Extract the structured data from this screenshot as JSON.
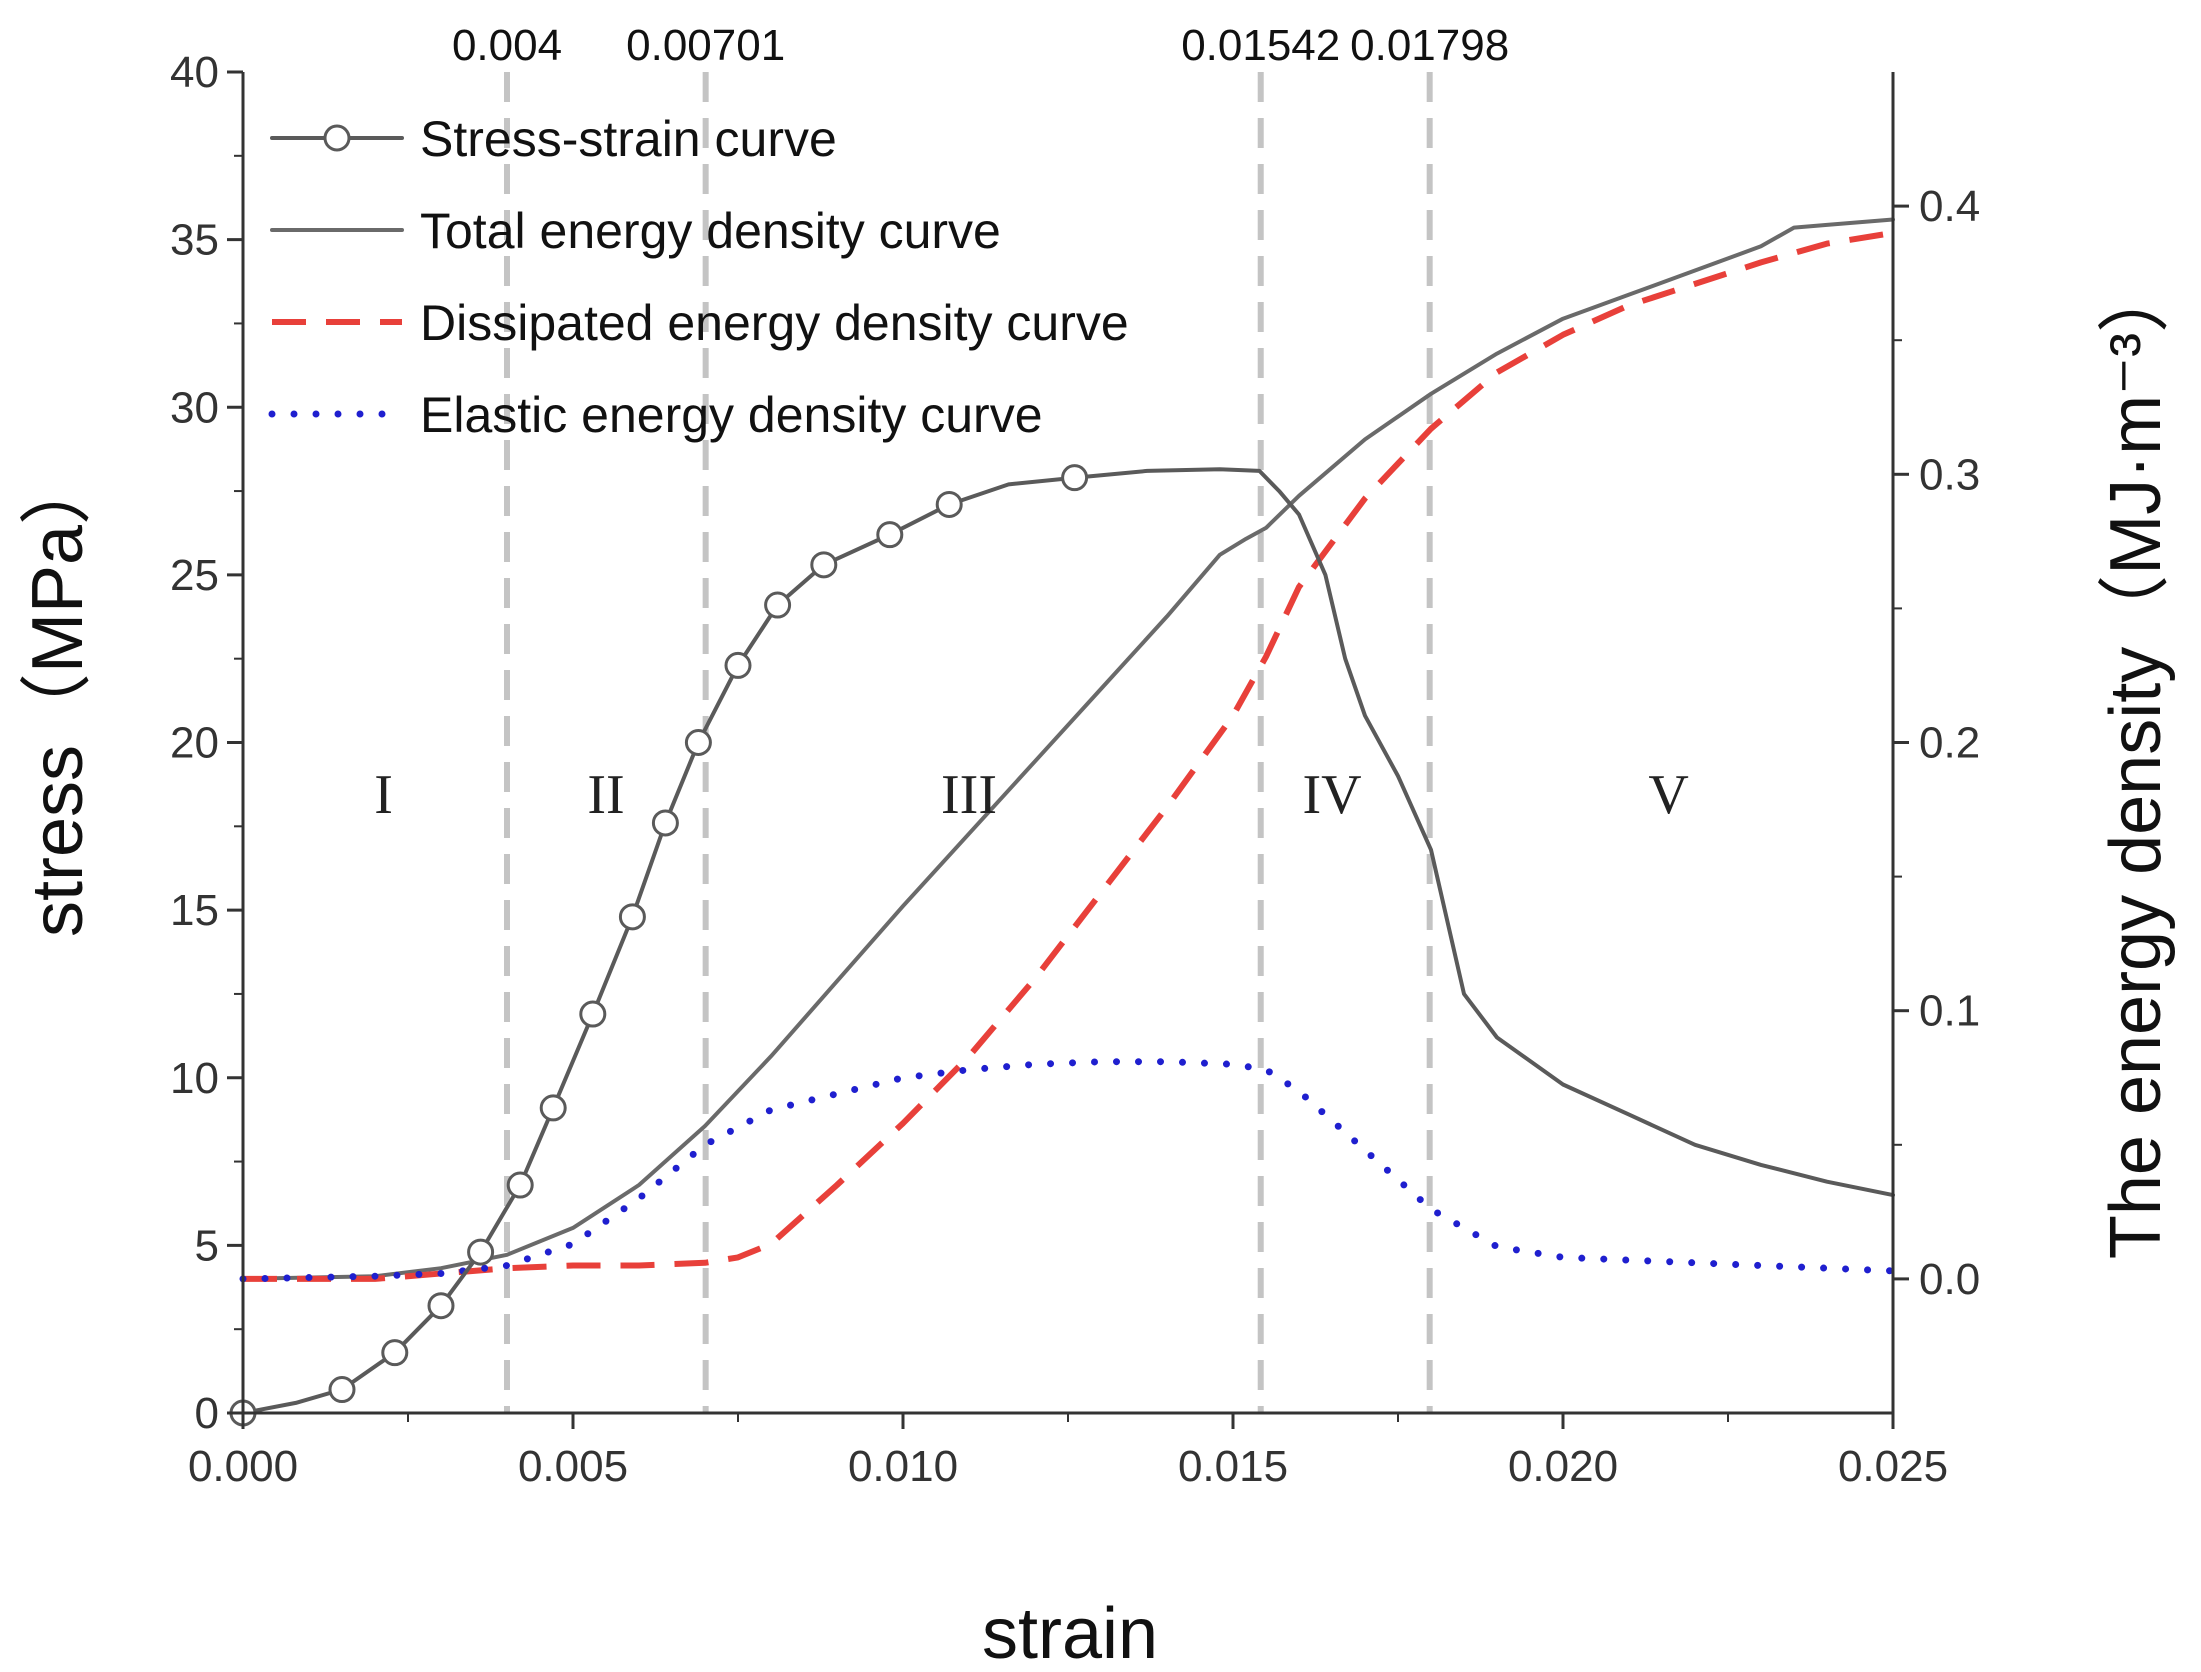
{
  "chart_data": {
    "type": "line",
    "xlabel": "strain",
    "ylabel_left": "stress（MPa）",
    "ylabel_right": "The energy density（MJ·m⁻³）",
    "xlim": [
      0,
      0.025
    ],
    "ylim_left": [
      0,
      40
    ],
    "ylim_right": [
      -0.05,
      0.45
    ],
    "x_ticks": [
      "0.000",
      "0.005",
      "0.010",
      "0.015",
      "0.020",
      "0.025"
    ],
    "y_left_ticks": [
      "0",
      "5",
      "10",
      "15",
      "20",
      "25",
      "30",
      "35",
      "40"
    ],
    "y_right_ticks": [
      "0.0",
      "0.1",
      "0.2",
      "0.3",
      "0.4"
    ],
    "boundaries": [
      {
        "x": 0.004,
        "label": "0.004"
      },
      {
        "x": 0.00701,
        "label": "0.00701"
      },
      {
        "x": 0.01542,
        "label": "0.01542"
      },
      {
        "x": 0.01798,
        "label": "0.01798"
      }
    ],
    "regions": [
      {
        "label": "I",
        "x": 0.00213,
        "y": 18.5
      },
      {
        "label": "II",
        "x": 0.0055,
        "y": 18.5
      },
      {
        "label": "III",
        "x": 0.011,
        "y": 18.5
      },
      {
        "label": "IV",
        "x": 0.0165,
        "y": 18.5
      },
      {
        "label": "V",
        "x": 0.0216,
        "y": 18.5
      }
    ],
    "series": [
      {
        "name": "Stress-strain curve",
        "axis": "left",
        "color": "#5a5a5a",
        "style": "line-circle",
        "x": [
          0,
          0.0008,
          0.0015,
          0.0023,
          0.003,
          0.0036,
          0.0042,
          0.0047,
          0.0053,
          0.0059,
          0.0064,
          0.0069,
          0.0075,
          0.0081,
          0.0088,
          0.0098,
          0.0107,
          0.0116,
          0.0126,
          0.0137,
          0.0148,
          0.0154,
          0.0157,
          0.016,
          0.0164,
          0.0167,
          0.017,
          0.0175,
          0.018,
          0.0185,
          0.019,
          0.02,
          0.021,
          0.022,
          0.023,
          0.024,
          0.025
        ],
        "y": [
          0,
          0.3,
          0.7,
          1.8,
          3.2,
          4.8,
          6.8,
          9.1,
          11.9,
          14.8,
          17.6,
          20.0,
          22.3,
          24.1,
          25.3,
          26.2,
          27.1,
          27.7,
          27.9,
          28.1,
          28.15,
          28.1,
          27.5,
          26.8,
          25.0,
          22.5,
          20.8,
          19.0,
          16.8,
          12.5,
          11.2,
          9.8,
          8.9,
          8.0,
          7.4,
          6.9,
          6.5
        ],
        "markers": [
          0,
          0.0015,
          0.0023,
          0.003,
          0.0036,
          0.0042,
          0.0047,
          0.0053,
          0.0059,
          0.0064,
          0.0069,
          0.0075,
          0.0081,
          0.0088,
          0.0098,
          0.0107,
          0.0126
        ]
      },
      {
        "name": "Total energy density curve",
        "axis": "right",
        "color": "#6a6a6a",
        "style": "solid",
        "x": [
          0,
          0.002,
          0.003,
          0.004,
          0.005,
          0.006,
          0.007,
          0.008,
          0.009,
          0.01,
          0.011,
          0.012,
          0.013,
          0.014,
          0.0148,
          0.0152,
          0.0155,
          0.016,
          0.017,
          0.018,
          0.019,
          0.02,
          0.021,
          0.022,
          0.023,
          0.0235,
          0.024,
          0.025
        ],
        "y": [
          0,
          0.001,
          0.004,
          0.009,
          0.019,
          0.035,
          0.057,
          0.083,
          0.111,
          0.139,
          0.166,
          0.193,
          0.22,
          0.247,
          0.27,
          0.276,
          0.28,
          0.292,
          0.313,
          0.33,
          0.345,
          0.358,
          0.367,
          0.376,
          0.385,
          0.392,
          0.393,
          0.395
        ]
      },
      {
        "name": "Dissipated energy density curve",
        "axis": "right",
        "color": "#e8403a",
        "style": "dashed",
        "x": [
          0,
          0.002,
          0.003,
          0.004,
          0.005,
          0.006,
          0.007,
          0.0075,
          0.008,
          0.009,
          0.01,
          0.011,
          0.012,
          0.013,
          0.014,
          0.015,
          0.0155,
          0.016,
          0.017,
          0.018,
          0.019,
          0.02,
          0.021,
          0.022,
          0.023,
          0.024,
          0.025
        ],
        "y": [
          0,
          0.0,
          0.002,
          0.004,
          0.005,
          0.005,
          0.006,
          0.008,
          0.013,
          0.035,
          0.058,
          0.083,
          0.112,
          0.144,
          0.176,
          0.21,
          0.232,
          0.258,
          0.291,
          0.317,
          0.338,
          0.352,
          0.363,
          0.371,
          0.379,
          0.386,
          0.39
        ]
      },
      {
        "name": "Elastic energy density curve",
        "axis": "right",
        "color": "#1f1fcf",
        "style": "dotted",
        "x": [
          0,
          0.002,
          0.003,
          0.004,
          0.005,
          0.006,
          0.007,
          0.008,
          0.009,
          0.01,
          0.011,
          0.012,
          0.013,
          0.014,
          0.015,
          0.0155,
          0.016,
          0.017,
          0.018,
          0.019,
          0.02,
          0.021,
          0.022,
          0.023,
          0.024,
          0.025
        ],
        "y": [
          0,
          0.001,
          0.002,
          0.005,
          0.013,
          0.03,
          0.05,
          0.063,
          0.069,
          0.075,
          0.078,
          0.08,
          0.081,
          0.081,
          0.08,
          0.078,
          0.07,
          0.048,
          0.026,
          0.012,
          0.008,
          0.007,
          0.006,
          0.005,
          0.004,
          0.003
        ]
      }
    ],
    "legend": {
      "position": "top-left",
      "entries": [
        "Stress-strain curve",
        "Total energy density curve",
        "Dissipated energy density curve",
        "Elastic energy density curve"
      ]
    }
  }
}
